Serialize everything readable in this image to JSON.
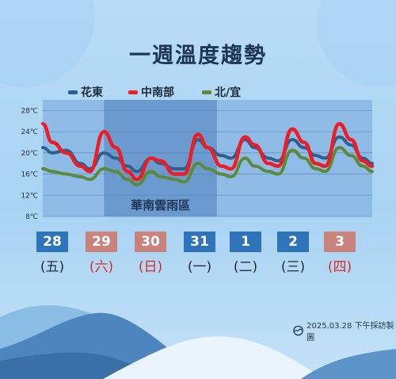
{
  "title": "一週溫度趨勢",
  "legend": [
    {
      "label": "花東",
      "color": "#2e5f8f"
    },
    {
      "label": "中南部",
      "color": "#ee1c24"
    },
    {
      "label": "北/宜",
      "color": "#5a8a3a"
    }
  ],
  "days": [
    {
      "date": "28",
      "weekday": "(五)",
      "color": "#2f73b8",
      "text_color": "#1d2b3a"
    },
    {
      "date": "29",
      "weekday": "(六)",
      "color": "#c9837c",
      "text_color": "#e02a1f"
    },
    {
      "date": "30",
      "weekday": "(日)",
      "color": "#c9837c",
      "text_color": "#e02a1f"
    },
    {
      "date": "31",
      "weekday": "(一)",
      "color": "#2f73b8",
      "text_color": "#1d2b3a"
    },
    {
      "date": "1",
      "weekday": "(二)",
      "color": "#2f73b8",
      "text_color": "#1d2b3a"
    },
    {
      "date": "2",
      "weekday": "(三)",
      "color": "#2f73b8",
      "text_color": "#1d2b3a"
    },
    {
      "date": "3",
      "weekday": "(四)",
      "color": "#c9837c",
      "text_color": "#e02a1f"
    }
  ],
  "footer": "2025.03.28 下午採訪製圖",
  "chart_data": {
    "type": "line",
    "ylabel": "",
    "xlabel": "",
    "ylim": [
      8,
      30
    ],
    "y_ticks": [
      "8℃",
      "12℃",
      "16℃",
      "20℃",
      "24℃",
      "28℃"
    ],
    "y_tick_values": [
      8,
      12,
      16,
      20,
      24,
      28
    ],
    "grid": true,
    "legend_position": "top",
    "annotation": "華南雲雨區",
    "shaded_region": {
      "from_day": 1.3,
      "to_day": 3.7,
      "label": "華南雲雨區"
    },
    "x": [
      0,
      0.2,
      0.5,
      0.8,
      1.0,
      1.3,
      1.55,
      1.8,
      2.0,
      2.3,
      2.5,
      2.8,
      3.0,
      3.3,
      3.5,
      3.8,
      4.0,
      4.3,
      4.5,
      4.8,
      5.0,
      5.3,
      5.55,
      5.8,
      6.0,
      6.3,
      6.55,
      6.8,
      7.0
    ],
    "series": [
      {
        "name": "花東",
        "color": "#2e5f8f",
        "values": [
          21,
          20,
          20.5,
          18,
          17,
          20,
          19,
          17.5,
          16.5,
          19,
          18,
          17,
          17,
          22.5,
          21,
          19.5,
          19,
          22.5,
          21,
          19,
          18.5,
          22.5,
          21,
          19.5,
          19,
          23,
          21.5,
          19,
          18
        ]
      },
      {
        "name": "中南部",
        "color": "#ee1c24",
        "values": [
          25.5,
          22,
          20,
          17.5,
          16.5,
          24,
          21,
          16.5,
          15,
          19,
          18.5,
          16,
          16,
          23.5,
          21,
          17.5,
          17,
          23,
          21.5,
          18,
          17.5,
          24.5,
          22,
          18,
          17.5,
          25.5,
          22.5,
          18.5,
          17.5
        ]
      },
      {
        "name": "北/宜",
        "color": "#5a8a3a",
        "values": [
          17,
          16.5,
          16,
          15.5,
          15,
          17,
          16.5,
          15,
          14,
          16.5,
          15.5,
          15,
          14.5,
          18,
          17,
          16,
          15.5,
          19,
          17.5,
          16.5,
          16,
          20.5,
          19,
          17,
          16.5,
          21,
          19.5,
          17.5,
          16.5
        ]
      }
    ]
  }
}
